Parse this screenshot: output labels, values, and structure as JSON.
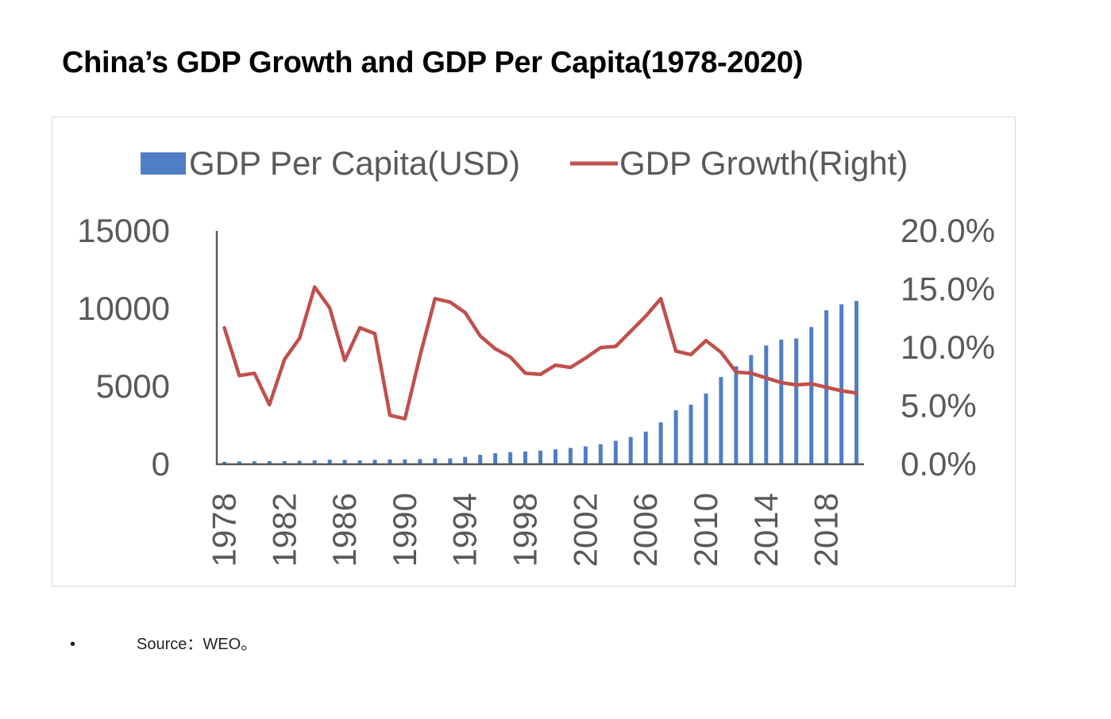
{
  "page": {
    "title": "China’s GDP Growth and GDP Per Capita(1978-2020)",
    "source_bullet": "•",
    "source": "Source：WEO。"
  },
  "chart_data": {
    "type": "bar+line",
    "title": "China’s GDP Growth and GDP Per Capita(1978-2020)",
    "x": [
      1978,
      1979,
      1980,
      1981,
      1982,
      1983,
      1984,
      1985,
      1986,
      1987,
      1988,
      1989,
      1990,
      1991,
      1992,
      1993,
      1994,
      1995,
      1996,
      1997,
      1998,
      1999,
      2000,
      2001,
      2002,
      2003,
      2004,
      2005,
      2006,
      2007,
      2008,
      2009,
      2010,
      2011,
      2012,
      2013,
      2014,
      2015,
      2016,
      2017,
      2018,
      2019,
      2020
    ],
    "x_tick_labels": [
      "1978",
      "1982",
      "1986",
      "1990",
      "1994",
      "1998",
      "2002",
      "2006",
      "2010",
      "2014",
      "2018"
    ],
    "legend_position": "top",
    "series": [
      {
        "name": "GDP Per Capita(USD)",
        "type": "bar",
        "axis": "left",
        "color": "#4f7ec5",
        "values": [
          156,
          183,
          195,
          197,
          203,
          225,
          251,
          294,
          282,
          252,
          284,
          311,
          318,
          333,
          366,
          377,
          473,
          609,
          709,
          781,
          828,
          873,
          959,
          1053,
          1148,
          1288,
          1508,
          1753,
          2099,
          2694,
          3468,
          3832,
          4550,
          5614,
          6301,
          7020,
          7636,
          8016,
          8094,
          8817,
          9905,
          10287,
          10500
        ]
      },
      {
        "name": "GDP Growth(Right)",
        "type": "line",
        "axis": "right",
        "color": "#c0504d",
        "values": [
          11.7,
          7.6,
          7.8,
          5.1,
          9.0,
          10.8,
          15.2,
          13.4,
          8.9,
          11.7,
          11.2,
          4.2,
          3.9,
          9.3,
          14.2,
          13.9,
          13.0,
          11.0,
          9.9,
          9.2,
          7.8,
          7.7,
          8.5,
          8.3,
          9.1,
          10.0,
          10.1,
          11.4,
          12.7,
          14.2,
          9.7,
          9.4,
          10.6,
          9.6,
          7.9,
          7.8,
          7.4,
          7.0,
          6.8,
          6.9,
          6.6,
          6.3,
          6.1
        ]
      }
    ],
    "y_left": {
      "min": 0,
      "max": 15000,
      "ticks": [
        "0",
        "5000",
        "10000",
        "15000"
      ],
      "label": ""
    },
    "y_right": {
      "min": 0,
      "max": 20,
      "ticks": [
        "0.0%",
        "5.0%",
        "10.0%",
        "15.0%",
        "20.0%"
      ],
      "label": ""
    },
    "xlabel": "",
    "grid": false
  }
}
